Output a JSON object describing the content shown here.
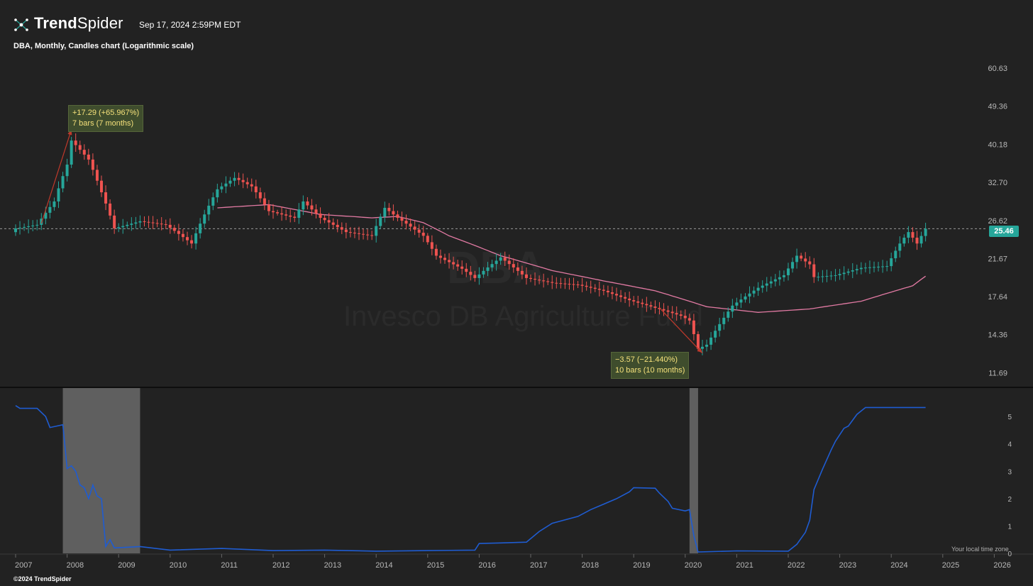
{
  "header": {
    "brand_bold": "Trend",
    "brand_light": "Spider",
    "timestamp": "Sep 17, 2024 2:59PM EDT",
    "subtitle": "DBA, Monthly, Candles chart (Logarithmic scale)"
  },
  "watermark": {
    "symbol": "DBA",
    "name": "Invesco DB Agriculture Fund"
  },
  "footer": {
    "copyright": "©2024 TrendSpider",
    "tz_note": "Your local time zone"
  },
  "colors": {
    "background": "#222222",
    "up": "#26a69a",
    "down": "#ef5350",
    "ma": "#e27aa3",
    "lower_line": "#1f5cd1",
    "shade": "#5f5f5f",
    "annotation_bg": "#3f4d2d",
    "annotation_text": "#f4e07a"
  },
  "chart_data": [
    {
      "type": "candlestick",
      "title": "DBA, Monthly, Candles chart (Logarithmic scale)",
      "y_scale": "log",
      "ylim": [
        10.8,
        66.5
      ],
      "y_ticks": [
        "60.63",
        "49.36",
        "40.18",
        "32.70",
        "26.62",
        "21.67",
        "17.64",
        "14.36",
        "11.69"
      ],
      "x_ticks": [
        "2007",
        "2008",
        "2009",
        "2010",
        "2011",
        "2012",
        "2013",
        "2014",
        "2015",
        "2016",
        "2017",
        "2018",
        "2019",
        "2020",
        "2021",
        "2022",
        "2023",
        "2024",
        "2025",
        "2026"
      ],
      "last_price": "25.46",
      "close_keypoints": [
        [
          "2007-01",
          25.5
        ],
        [
          "2007-06",
          26.0
        ],
        [
          "2007-10",
          29.5
        ],
        [
          "2008-01",
          36.0
        ],
        [
          "2008-02",
          41.0
        ],
        [
          "2008-06",
          37.0
        ],
        [
          "2008-09",
          31.0
        ],
        [
          "2008-12",
          25.5
        ],
        [
          "2009-06",
          26.5
        ],
        [
          "2009-12",
          26.0
        ],
        [
          "2010-06",
          23.5
        ],
        [
          "2010-12",
          31.5
        ],
        [
          "2011-04",
          33.5
        ],
        [
          "2011-08",
          32.0
        ],
        [
          "2011-12",
          28.0
        ],
        [
          "2012-06",
          27.0
        ],
        [
          "2012-08",
          29.5
        ],
        [
          "2012-12",
          27.0
        ],
        [
          "2013-06",
          25.0
        ],
        [
          "2013-12",
          24.5
        ],
        [
          "2014-03",
          28.5
        ],
        [
          "2014-06",
          27.0
        ],
        [
          "2014-12",
          24.5
        ],
        [
          "2015-03",
          22.0
        ],
        [
          "2015-09",
          20.5
        ],
        [
          "2015-12",
          19.5
        ],
        [
          "2016-06",
          21.8
        ],
        [
          "2016-12",
          19.5
        ],
        [
          "2017-06",
          19.0
        ],
        [
          "2017-12",
          18.8
        ],
        [
          "2018-06",
          18.2
        ],
        [
          "2018-12",
          17.3
        ],
        [
          "2019-06",
          16.6
        ],
        [
          "2019-12",
          15.9
        ],
        [
          "2020-02",
          15.5
        ],
        [
          "2020-04",
          13.3
        ],
        [
          "2020-06",
          13.6
        ],
        [
          "2020-12",
          16.8
        ],
        [
          "2021-06",
          18.5
        ],
        [
          "2021-12",
          19.8
        ],
        [
          "2022-03",
          22.0
        ],
        [
          "2022-06",
          21.0
        ],
        [
          "2022-07",
          19.6
        ],
        [
          "2022-12",
          19.8
        ],
        [
          "2023-06",
          20.6
        ],
        [
          "2023-12",
          20.8
        ],
        [
          "2024-03",
          23.5
        ],
        [
          "2024-05",
          25.0
        ],
        [
          "2024-07",
          23.5
        ],
        [
          "2024-09",
          25.46
        ]
      ],
      "moving_average_keypoints": [
        [
          "2010-12",
          28.5
        ],
        [
          "2011-12",
          29.0
        ],
        [
          "2012-12",
          27.5
        ],
        [
          "2013-12",
          27.0
        ],
        [
          "2014-06",
          27.2
        ],
        [
          "2014-12",
          26.3
        ],
        [
          "2015-06",
          24.5
        ],
        [
          "2016-06",
          22.0
        ],
        [
          "2017-06",
          20.3
        ],
        [
          "2018-06",
          19.2
        ],
        [
          "2019-06",
          18.2
        ],
        [
          "2020-06",
          16.7
        ],
        [
          "2021-06",
          16.2
        ],
        [
          "2022-06",
          16.5
        ],
        [
          "2023-06",
          17.2
        ],
        [
          "2024-06",
          18.7
        ],
        [
          "2024-09",
          19.7
        ]
      ],
      "annotations": [
        {
          "line1": "+17.29 (+65.967%)",
          "line2": "7 bars (7 months)",
          "from": [
            "2007-07",
            26.2
          ],
          "to": [
            "2008-02",
            43.5
          ]
        },
        {
          "line1": "−3.57 (−21.440%)",
          "line2": "10 bars (10 months)",
          "from": [
            "2019-07",
            16.6
          ],
          "to": [
            "2020-05",
            13.0
          ]
        }
      ]
    },
    {
      "type": "line",
      "ylim": [
        0,
        5.6
      ],
      "y_ticks": [
        "0",
        "1",
        "2",
        "3",
        "4",
        "5"
      ],
      "points": [
        [
          "2007-01",
          5.4
        ],
        [
          "2007-02",
          5.3
        ],
        [
          "2007-06",
          5.3
        ],
        [
          "2007-08",
          5.0
        ],
        [
          "2007-09",
          4.6
        ],
        [
          "2007-12",
          4.7
        ],
        [
          "2008-01",
          3.1
        ],
        [
          "2008-02",
          3.2
        ],
        [
          "2008-03",
          3.0
        ],
        [
          "2008-04",
          2.5
        ],
        [
          "2008-05",
          2.4
        ],
        [
          "2008-06",
          2.0
        ],
        [
          "2008-07",
          2.5
        ],
        [
          "2008-08",
          2.1
        ],
        [
          "2008-09",
          2.0
        ],
        [
          "2008-10",
          0.25
        ],
        [
          "2008-11",
          0.5
        ],
        [
          "2008-12",
          0.2
        ],
        [
          "2009-06",
          0.25
        ],
        [
          "2010-01",
          0.12
        ],
        [
          "2011-01",
          0.18
        ],
        [
          "2012-01",
          0.1
        ],
        [
          "2013-01",
          0.12
        ],
        [
          "2014-01",
          0.08
        ],
        [
          "2015-01",
          0.1
        ],
        [
          "2015-12",
          0.12
        ],
        [
          "2016-01",
          0.36
        ],
        [
          "2016-06",
          0.38
        ],
        [
          "2016-12",
          0.41
        ],
        [
          "2017-03",
          0.8
        ],
        [
          "2017-06",
          1.1
        ],
        [
          "2017-12",
          1.35
        ],
        [
          "2018-03",
          1.6
        ],
        [
          "2018-06",
          1.8
        ],
        [
          "2018-09",
          2.0
        ],
        [
          "2018-12",
          2.25
        ],
        [
          "2019-01",
          2.4
        ],
        [
          "2019-06",
          2.38
        ],
        [
          "2019-07",
          2.2
        ],
        [
          "2019-09",
          1.9
        ],
        [
          "2019-10",
          1.65
        ],
        [
          "2020-01",
          1.55
        ],
        [
          "2020-02",
          1.6
        ],
        [
          "2020-03",
          0.65
        ],
        [
          "2020-04",
          0.05
        ],
        [
          "2021-01",
          0.09
        ],
        [
          "2022-01",
          0.08
        ],
        [
          "2022-03",
          0.33
        ],
        [
          "2022-05",
          0.77
        ],
        [
          "2022-06",
          1.21
        ],
        [
          "2022-07",
          2.33
        ],
        [
          "2022-09",
          3.08
        ],
        [
          "2022-11",
          3.78
        ],
        [
          "2022-12",
          4.1
        ],
        [
          "2023-02",
          4.57
        ],
        [
          "2023-03",
          4.65
        ],
        [
          "2023-05",
          5.08
        ],
        [
          "2023-07",
          5.33
        ],
        [
          "2024-09",
          5.33
        ]
      ],
      "shaded_periods": [
        [
          "2007-12",
          "2009-06"
        ],
        [
          "2020-02",
          "2020-04"
        ]
      ]
    }
  ]
}
